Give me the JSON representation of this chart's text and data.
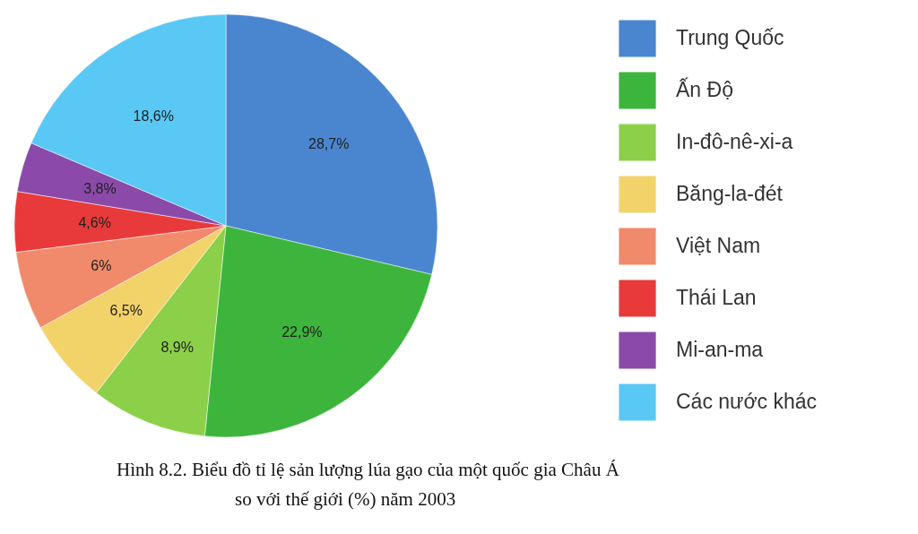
{
  "chart_data": {
    "type": "pie",
    "categories": [
      "Trung Quốc",
      "Ấn Độ",
      "In-đô-nê-xi-a",
      "Băng-la-đét",
      "Việt Nam",
      "Thái Lan",
      "Mi-an-ma",
      "Các nước khác"
    ],
    "values": [
      28.7,
      22.9,
      8.9,
      6.5,
      6,
      4.6,
      3.8,
      18.6
    ],
    "colors": [
      "#4a86d0",
      "#3db53d",
      "#8cd04a",
      "#f2d36a",
      "#f08a6a",
      "#e83a3a",
      "#8b4aaa",
      "#5ac8f5"
    ],
    "value_labels": [
      "28,7%",
      "22,9%",
      "8,9%",
      "6,5%",
      "6%",
      "4,6%",
      "3,8%",
      "18,6%"
    ],
    "legend": "right",
    "annotations": [
      "Hình 8.2. Biểu đồ tỉ lệ sản lượng lúa gạo của một quốc gia Châu Á",
      "so với thế giới (%) năm 2003"
    ]
  }
}
